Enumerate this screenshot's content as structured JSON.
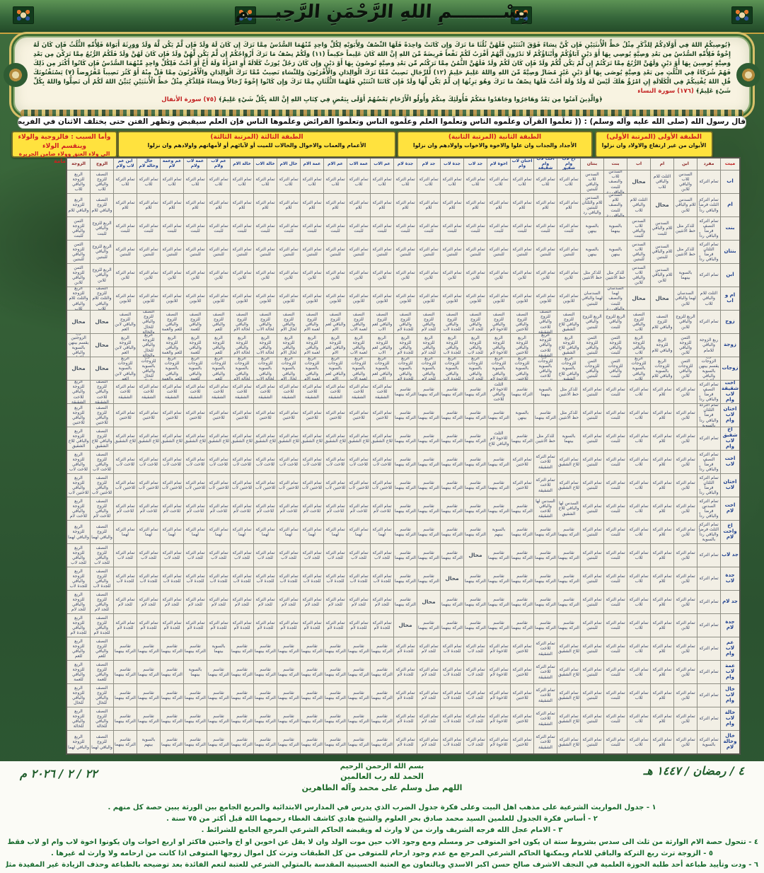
{
  "header": {
    "bismillah": "بِسْــــــــمِ اللهِ الرَّحْمَنِ الرَّحِيــــمِ"
  },
  "quran": {
    "body": "﴿يُوصِيكُمُ اللهُ فِي أَوْلَادِكُمْ لِلذَّكَرِ مِثْلُ حَظِّ الْأُنثَيَيْنِ فَإِن كُنَّ نِسَاءً فَوْقَ اثْنَتَيْنِ فَلَهُنَّ ثُلُثَا مَا تَرَكَ وَإِن كَانَتْ وَاحِدَةً فَلَهَا النِّصْفُ وَلِأَبَوَيْهِ لِكُلِّ وَاحِدٍ مِّنْهُمَا السُّدُسُ مِمَّا تَرَكَ إِن كَانَ لَهُ وَلَدٌ فَإِن لَّمْ يَكُن لَّهُ وَلَدٌ وَوَرِثَهُ أَبَوَاهُ فَلِأُمِّهِ الثُّلُثُ فَإِن كَانَ لَهُ إِخْوَةٌ فَلِأُمِّهِ السُّدُسُ مِن بَعْدِ وَصِيَّةٍ يُوصِي بِهَا أَوْ دَيْنٍ آبَاؤُكُمْ وَأَبْنَاؤُكُمْ لَا تَدْرُونَ أَيُّهُمْ أَقْرَبُ لَكُمْ نَفْعاً فَرِيضَةً مِّنَ اللهِ إِنَّ اللهَ كَانَ عَلِيماً حَكِيماً (١١) وَلَكُمْ نِصْفُ مَا تَرَكَ أَزْوَاجُكُمْ إِن لَّمْ يَكُن لَّهُنَّ وَلَدٌ فَإِن كَانَ لَهُنَّ وَلَدٌ فَلَكُمُ الرُّبُعُ مِمَّا تَرَكْنَ مِن بَعْدِ وَصِيَّةٍ يُوصِينَ بِهَا أَوْ دَيْنٍ وَلَهُنَّ الرُّبُعُ مِمَّا تَرَكْتُمْ إِن لَّمْ يَكُن لَّكُمْ وَلَدٌ فَإِن كَانَ لَكُمْ وَلَدٌ فَلَهُنَّ الثُّمُنُ مِمَّا تَرَكْتُم مِّن بَعْدِ وَصِيَّةٍ تُوصُونَ بِهَا أَوْ دَيْنٍ وَإِن كَانَ رَجُلٌ يُورَثُ كَلَالَةً أَوِ امْرَأَةٌ وَلَهُ أَخٌ أَوْ أُخْتٌ فَلِكُلِّ وَاحِدٍ مِّنْهُمَا السُّدُسُ فَإِن كَانُوا أَكْثَرَ مِن ذَلِكَ فَهُمْ شُرَكَاءُ فِي الثُّلُثِ مِن بَعْدِ وَصِيَّةٍ يُوصَى بِهَا أَوْ دَيْنٍ غَيْرَ مُضَارٍّ وَصِيَّةً مِّنَ اللهِ وَاللهُ عَلِيمٌ حَلِيمٌ (١٢) لِّلرِّجَالِ نَصِيبٌ مِّمَّا تَرَكَ الْوَالِدَانِ وَالْأَقْرَبُونَ وَلِلنِّسَاءِ نَصِيبٌ مِّمَّا تَرَكَ الْوَالِدَانِ وَالْأَقْرَبُونَ مِمَّا قَلَّ مِنْهُ أَوْ كَثُرَ نَصِيباً مَّفْرُوضاً (٧) يَسْتَفْتُونَكَ قُلِ اللهُ يُفْتِيكُمْ فِي الْكَلَالَةِ إِنِ امْرُؤٌ هَلَكَ لَيْسَ لَهُ وَلَدٌ وَلَهُ أُخْتٌ فَلَهَا نِصْفُ مَا تَرَكَ وَهُوَ يَرِثُهَا إِن لَّمْ يَكُن لَّهَا وَلَدٌ فَإِن كَانَتَا اثْنَتَيْنِ فَلَهُمَا الثُّلُثَانِ مِمَّا تَرَكَ وَإِن كَانُوا إِخْوَةً رِّجَالاً وَنِسَاءً فَلِلذَّكَرِ مِثْلُ حَظِّ الْأُنثَيَيْنِ يُبَيِّنُ اللهُ لَكُمْ أَن تَضِلُّوا وَاللهُ بِكُلِّ شَيْءٍ عَلِيمٌ﴾",
    "nisa_ref": "(١٧٦) سورة النساء",
    "anfal": "﴿وَالَّذِينَ آمَنُوا مِن بَعْدُ وَهَاجَرُوا وَجَاهَدُوا مَعَكُمْ فَأُولَئِكَ مِنكُمْ وَأُولُو الْأَرْحَامِ بَعْضُهُمْ أَوْلَى بِبَعْضٍ فِي كِتَابِ اللهِ إِنَّ اللهَ بِكُلِّ شَيْءٍ عَلِيمٌ﴾",
    "anfal_ref": "(٧٥) سورة الأنفال"
  },
  "hadith": "قال رسول الله (صلى الله عليه وآله وسلم) : (( تعلّموا القرآن وعلّموه الناس وتعلّموا العلم وعلّموه الناس وتعلّموا الفرائض وعلّموها الناس فإن العلم سيقبض وتظهر الفتن حتى يختلف الاثنان في الفريضة فلا يجدان من يفصل بينهما ))",
  "sections": [
    {
      "title": "الطبقة الأولى (المرتبة الأولى)",
      "subtitle": "الأبوان من غير ارتفاع والاولاد وان نزلوا"
    },
    {
      "title": "الطبقة الثانية (المرتبة الثانية)",
      "subtitle": "الأجداد والجدات وان علوا والاخوة والاخوات واولادهم وان نزلوا"
    },
    {
      "title": "الطبقة الثالثة (المرتبة الثالثة)",
      "subtitle": "الأعمام والعمات والاخوال والخالات للميت أو لآبائهم أو لأمهاتهم واولادهم وان نزلوا"
    },
    {
      "title": "وأما السبب : فالزوجية والولاء وينقسم الولاء",
      "subtitle": "الى ولاء العتق وولاء ضامن الجريرة والإمامة"
    }
  ],
  "table": {
    "corner": "ميت",
    "defaults": {
      "whole": "تمام التركة",
      "whole_for": "تمام التركة ",
      "share": "تقاسم التركة بينهما",
      "husband": "النصف للزوج والباقي ",
      "wife": "الربع للزوجة والباقي ",
      "impossible": "محال"
    },
    "columns": [
      {
        "label": "مفرد",
        "cls": 1
      },
      {
        "label": "ابن",
        "cls": 1
      },
      {
        "label": "ام",
        "cls": 1
      },
      {
        "label": "اب",
        "cls": 1
      },
      {
        "label": "بنت",
        "cls": 1
      },
      {
        "label": "بنتان",
        "cls": 1
      },
      {
        "label": "اخ لاب وام شقيق",
        "cls": 2
      },
      {
        "label": "اخت لاب وام شقيقة",
        "cls": 2
      },
      {
        "label": "اختان لاب وام",
        "cls": 2
      },
      {
        "label": "اخوة لام",
        "cls": 2
      },
      {
        "label": "جد لاب",
        "cls": 2
      },
      {
        "label": "جدة لاب",
        "cls": 2
      },
      {
        "label": "جد لام",
        "cls": 2
      },
      {
        "label": "جدة لام",
        "cls": 2
      },
      {
        "label": "عم الاب",
        "cls": 3
      },
      {
        "label": "عمة الاب",
        "cls": 3
      },
      {
        "label": "عم الام",
        "cls": 3
      },
      {
        "label": "عمة الام",
        "cls": 3
      },
      {
        "label": "خال الام",
        "cls": 3
      },
      {
        "label": "خالة الاب",
        "cls": 3
      },
      {
        "label": "خالة الام",
        "cls": 3
      },
      {
        "label": "عم لاب ولام",
        "cls": 3
      },
      {
        "label": "عمة لاب ولام",
        "cls": 3
      },
      {
        "label": "عم وعمة لام",
        "cls": 3
      },
      {
        "label": "خال وخالة لام",
        "cls": 3
      },
      {
        "label": "ابن عم لاب ولام",
        "cls": 3
      },
      {
        "label": "الزوج",
        "cls": 4
      },
      {
        "label": "الزوجة",
        "cls": 4
      }
    ],
    "col_benef": [
      "",
      "للابن",
      "للام",
      "للاب",
      "للبنت",
      "للبنتين",
      "للاخ الشقيق",
      "للاخت الشقيقة",
      "للاختين",
      "للاخوة لام",
      "للجد لاب",
      "للجدة لاب",
      "للجد لام",
      "للجدة لام",
      "لعم الاب",
      "لعمة الاب",
      "لعم الام",
      "لعمة الام",
      "لخال الام",
      "لخالة الاب",
      "لخالة الام",
      "للعم",
      "للعمة",
      "للعم والعمة",
      "للخال والخالة",
      "لابن العم",
      "للزوج",
      "للزوجة"
    ],
    "rows": [
      {
        "label": "اب",
        "cls": 1,
        "benef": "للاب",
        "cells": {
          "0": "تمام التركة",
          "1": "السدس للاب والباقي للابن",
          "2": "الثلث للام والباقي للاب",
          "3": "محال",
          "4": "السدس للاب والنصف للبنت والباقي رد",
          "5": "السدس للاب والباقي للبنتين"
        }
      },
      {
        "label": "ام",
        "cls": 1,
        "benef": "للام",
        "cells": {
          "0": "تمام التركة الثلث فرضاً والباقي رداً",
          "1": "السدس للام والباقي للابن",
          "2": "محال",
          "3": "الثلث للام والباقي للاب",
          "4": "السدس للام والنصف للبنت والباقي رد",
          "5": "السدس للام والثلثان للبنتين والباقي رد"
        }
      },
      {
        "label": "بنت",
        "cls": 1,
        "benef": "للبنت",
        "cells": {
          "0": "تمام التركة النصف فرضاً والباقي رداً",
          "1": "للذكر مثل حظ الانثيين",
          "2": "السدس للام والباقي للبنت",
          "3": "السدس للاب والباقي للبنت",
          "4": "بالسوية بينهما",
          "5": "بالسوية بينهن",
          "26": "الربع للزوج والباقي للبنت",
          "27": "الثمن للزوجة والباقي للبنت"
        }
      },
      {
        "label": "بنتان",
        "cls": 1,
        "benef": "للبنتين",
        "cells": {
          "0": "تمام التركة الثلثان فرضاً والباقي رداً",
          "1": "للذكر مثل حظ الانثيين",
          "2": "السدس للام والباقي للبنتين",
          "3": "السدس للاب والباقي للبنتين",
          "4": "بالسوية بينهن",
          "5": "بالسوية بينهن",
          "26": "الربع للزوج والباقي للبنتين",
          "27": "الثمن للزوجة والباقي للبنتين"
        }
      },
      {
        "label": "ابن",
        "cls": 1,
        "benef": "للابن",
        "cells": {
          "0": "تمام التركة",
          "1": "بالسوية بينهما",
          "2": "السدس للام والباقي للابن",
          "3": "السدس للاب والباقي للابن",
          "4": "للذكر مثل حظ الانثيين",
          "5": "للذكر مثل حظ الانثيين",
          "26": "الربع للزوج والباقي للابن",
          "27": "الثمن للزوجة والباقي للابن"
        }
      },
      {
        "label": "ام و اب",
        "cls": 1,
        "benef": "للابوين",
        "cells": {
          "0": "الثلث للام والباقي للاب",
          "1": "السدسان لهما والباقي للابن",
          "2": "محال",
          "3": "محال",
          "4": "السدسان لهما والنصف للبنت والباقي رد",
          "5": "السدسان لهما والباقي للبنتين",
          "26": "النصف للزوج والثلث للام والباقي للاب",
          "27": "الربع للزوجة والثلث للام والباقي للاب"
        }
      },
      {
        "label": "زوج",
        "cls": 4,
        "benef": "للزوج",
        "prefix": "النصف للزوج والباقي ",
        "cells": {
          "0": "تمام التركة",
          "1": "الربع للزوج والباقي للابن",
          "4": "الربع للزوج والباقي للبنت",
          "5": "الربع للزوج والباقي للبنتين",
          "26": "محال",
          "27": "محال"
        }
      },
      {
        "label": "زوجة",
        "cls": 4,
        "benef": "للزوجة",
        "prefix": "الربع للزوجة والباقي ",
        "cells": {
          "0": "ربع الزوجة والباقي للامام",
          "1": "الثمن للزوجة والباقي للابن",
          "4": "الثمن للزوجة والباقي للبنت",
          "5": "الثمن للزوجة والباقي للبنتين",
          "26": "محال",
          "27": "ربع الزوجتين يقسم بينهن بالسوية والباقي للامام"
        }
      },
      {
        "label": "زوجات",
        "cls": 4,
        "benef": "للزوجات",
        "prefix": "الربع للزوجات بالسوية والباقي ",
        "cells": {
          "0": "ربع الزوجات يقسم بينهن بالسوية والباقي للامام",
          "1": "الثمن للزوجات والباقي للابن",
          "4": "الثمن للزوجات والباقي للبنت",
          "5": "الثمن للزوجات والباقي للبنتين",
          "26": "محال",
          "27": "محال"
        }
      },
      {
        "label": "اخت شقيقة لاب وام",
        "cls": 2,
        "benef": "للاخت الشقيقة",
        "cells": {
          "0": "تمام التركة النصف فرضاً والباقي رداً",
          "7": "بالسوية بينهما",
          "6": "للذكر مثل حظ الانثيين",
          "9": "الثلث للاخوة لام والباقي للاخت"
        }
      },
      {
        "label": "اختان لاب وام",
        "cls": 2,
        "benef": "للاختين",
        "cells": {
          "0": "تمام التركة الثلثان فرضاً والباقي رداً بالسوية",
          "8": "بالسوية بينهن",
          "6": "للذكر مثل حظ الانثيين"
        }
      },
      {
        "label": "اخ شقيق لاب وام",
        "cls": 2,
        "benef": "للاخ الشقيق",
        "cells": {
          "0": "تمام التركة",
          "6": "بالسوية بينهما",
          "7": "للذكر مثل حظ الانثيين",
          "9": "الثلث للاخوة لام والباقي للاخ"
        }
      },
      {
        "label": "اخت لاب",
        "cls": 2,
        "benef": "للاخت لاب",
        "cells": {
          "0": "تمام التركة النصف فرضاً والباقي رداً",
          "6": "تمام التركة للاخ الشقيق",
          "7": "تمام التركة للاخت الشقيقة",
          "8": "تمام التركة للاختين"
        }
      },
      {
        "label": "اختان لاب",
        "cls": 2,
        "benef": "للاختين لاب",
        "cells": {
          "0": "تمام التركة الثلثان فرضاً والباقي رداً",
          "6": "تمام التركة للاخ الشقيق",
          "7": "تمام التركة للاخت الشقيقة",
          "8": "تمام التركة للاختين"
        }
      },
      {
        "label": "اخت لام",
        "cls": 2,
        "benef": "للاخت لام",
        "cells": {
          "0": "تمام التركة السدس فرضاً والباقي رداً",
          "6": "السدس لها والباقي للاخ الشقيق",
          "7": "السدس لها والباقي للاخت الشقيقة"
        }
      },
      {
        "label": "اخ واخت لام",
        "cls": 2,
        "benef": "لهما",
        "cells": {
          "0": "تمام التركة الثلث فرضاً والباقي رداً بالسوية",
          "9": "بالسوية بينهم"
        }
      },
      {
        "label": "جد لاب",
        "cls": 2,
        "benef": "للجد لاب",
        "cells": {
          "0": "تمام التركة",
          "10": "محال"
        }
      },
      {
        "label": "جدة لاب",
        "cls": 2,
        "benef": "للجدة لاب",
        "cells": {
          "0": "تمام التركة",
          "11": "محال"
        }
      },
      {
        "label": "جد لام",
        "cls": 2,
        "benef": "للجد لام",
        "cells": {
          "0": "تمام التركة",
          "12": "محال"
        }
      },
      {
        "label": "جدة لام",
        "cls": 2,
        "benef": "للجدة لام",
        "cells": {
          "0": "تمام التركة",
          "13": "محال"
        }
      },
      {
        "label": "عم لاب وام",
        "cls": 3,
        "benef": "للعم",
        "cells": {
          "0": "تمام التركة",
          "21": "بالسوية بينهما"
        }
      },
      {
        "label": "عمة لاب وام",
        "cls": 3,
        "benef": "للعمة",
        "cells": {
          "0": "تمام التركة",
          "22": "بالسوية بينهما"
        }
      },
      {
        "label": "خال لاب وام",
        "cls": 3,
        "benef": "للخال",
        "cells": {
          "0": "تمام التركة"
        }
      },
      {
        "label": "خالة لاب وام",
        "cls": 3,
        "benef": "للخالة",
        "cells": {
          "0": "تمام التركة"
        }
      },
      {
        "label": "خال وخالة لام",
        "cls": 3,
        "benef": "لهما",
        "cells": {
          "0": "تمام التركة بالسوية",
          "24": "بالسوية بينهم"
        }
      }
    ]
  },
  "footer": {
    "date_hijri": "٤ / رمضان / ١٤٤٧ هـ",
    "date_greg": "٢٢ / ٢ / ٢٠٢٦ م",
    "basmala": "بسم الله الرحمن الرحيم",
    "hamd": "الحمد لله رب العالمين",
    "salawat": "اللهم صل وسلم على محمد وآله الطاهرين",
    "notes": [
      "١ - جدول المواريث الشرعية على مذهب اهل البيت وعلى فكرة جدول الضرب الذي يدرس في المدارس الابتدائية والمربع الجامع بين الورثة يبين حصة كل منهم .",
      "٢ - أساس فكرة الجدول للعلمين السيد محمد صادق بحر العلوم والشيخ هادي كاشف الغطاء رحمهما الله قبل أكثر من ٧٥ سنة .",
      "٣ - الامام عجل الله فرجه الشريف وارث من لا وارث له ويقبضه الحاكم الشرعي المرجع الجامع للشرائط .",
      "٤ - تتحول حصة الام الوارثة من ثلث الى سدس بشروط ستة ان يكون اخو المتوفى حر ومسلم ومع وجود الاب حين موت الولد وان لا يقل عن اخوين او اخ واختين فاكثر او اربع اخوات وان يكونوا اخوة لاب وام او لاب فقط ولا يكونوا امواتا ولا يكفي الحمل .",
      "٥ - الزوجة ترث ربع التركة والباقي للامام ويمكنها الحاكم الشرعي المرجع مع عدم وجود ارحام للمتوفى من كل الطبقات وترث كل اموال زوجها المتوفى اذا كانت من ارحامه ولا وارث له غيرها .",
      "٦ - ودت وتأييد طباعة أحد طلبة الحوزة العلمية في النجف الاشرف صالح حسن اكبر الاسدي وبالتعاون مع العتبة الحسينية المقدسة بالمتولي الشرعي للعتبة لتعم الفائدة بعد توضيحه بالطباعة وحذف الزيادة غير المفيدة مثل العتق وغيرها ."
    ]
  }
}
